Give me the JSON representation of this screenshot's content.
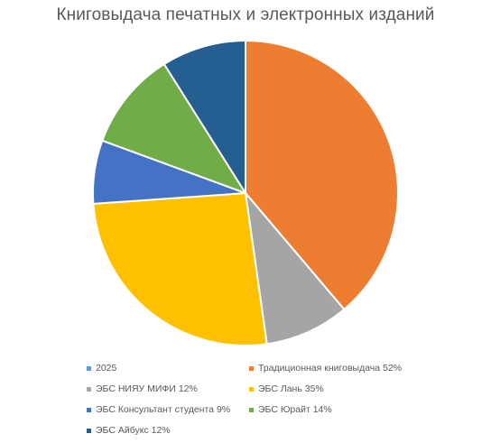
{
  "chart_data": {
    "type": "pie",
    "title": "Книговыдача печатных и электронных изданий",
    "start_angle_deg": 0,
    "direction": "clockwise",
    "legend_position": "bottom",
    "slices": [
      {
        "label": "2025",
        "value": 0,
        "color": "#5b9bd5"
      },
      {
        "label": "Традиционная книговыдача 52%",
        "value": 52,
        "color": "#ed7d31"
      },
      {
        "label": "ЭБС НИЯУ МИФИ 12%",
        "value": 12,
        "color": "#a5a5a5"
      },
      {
        "label": "ЭБС Лань 35%",
        "value": 35,
        "color": "#ffc000"
      },
      {
        "label": "ЭБС Консультант студента 9%",
        "value": 9,
        "color": "#4472c4"
      },
      {
        "label": "ЭБС Юрайт 14%",
        "value": 14,
        "color": "#70ad47"
      },
      {
        "label": "ЭБС Айбукс 12%",
        "value": 12,
        "color": "#255e91"
      }
    ]
  }
}
